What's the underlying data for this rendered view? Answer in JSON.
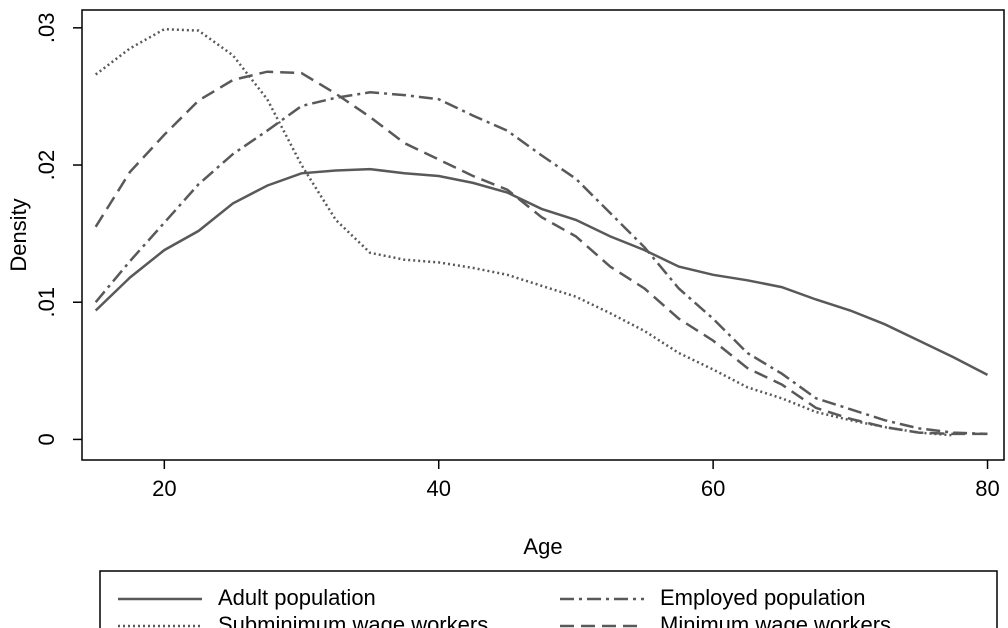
{
  "chart_data": {
    "type": "line",
    "x_label": "Age",
    "y_label": "Density",
    "x": [
      15,
      17.5,
      20,
      22.5,
      25,
      27.5,
      30,
      32.5,
      35,
      37.5,
      40,
      42.5,
      45,
      47.5,
      50,
      52.5,
      55,
      57.5,
      60,
      62.5,
      65,
      67.5,
      70,
      72.5,
      75,
      77.5,
      80
    ],
    "series": [
      {
        "name": "Adult population",
        "color": "#595959",
        "dash": "solid",
        "values": [
          0.0094,
          0.0118,
          0.0138,
          0.0152,
          0.0172,
          0.0185,
          0.0194,
          0.0196,
          0.0197,
          0.0194,
          0.0192,
          0.0187,
          0.018,
          0.0168,
          0.016,
          0.0148,
          0.0138,
          0.0126,
          0.012,
          0.0116,
          0.0111,
          0.0102,
          0.0094,
          0.0084,
          0.0072,
          0.006,
          0.0047
        ]
      },
      {
        "name": "Employed population",
        "color": "#595959",
        "dash": "dashdot",
        "values": [
          0.01,
          0.013,
          0.0158,
          0.0186,
          0.0208,
          0.0225,
          0.0243,
          0.0249,
          0.0253,
          0.0251,
          0.0248,
          0.0236,
          0.0225,
          0.0207,
          0.019,
          0.0165,
          0.014,
          0.011,
          0.0088,
          0.0063,
          0.0048,
          0.003,
          0.0022,
          0.0014,
          0.0008,
          0.0005,
          0.0004
        ]
      },
      {
        "name": "Subminimum wage workers",
        "color": "#595959",
        "dash": "dot",
        "values": [
          0.0266,
          0.0285,
          0.0299,
          0.0298,
          0.028,
          0.0248,
          0.02,
          0.016,
          0.0136,
          0.0131,
          0.0129,
          0.0125,
          0.012,
          0.0112,
          0.0104,
          0.0092,
          0.0079,
          0.0063,
          0.0051,
          0.0038,
          0.003,
          0.002,
          0.0014,
          0.0009,
          0.0005,
          0.0003,
          null
        ]
      },
      {
        "name": "Minimum wage workers",
        "color": "#595959",
        "dash": "dash",
        "values": [
          0.0155,
          0.0195,
          0.0222,
          0.0247,
          0.0262,
          0.0268,
          0.0267,
          0.0252,
          0.0235,
          0.0216,
          0.0204,
          0.0192,
          0.0182,
          0.0162,
          0.0148,
          0.0126,
          0.011,
          0.0088,
          0.0072,
          0.0052,
          0.004,
          0.0023,
          0.0015,
          0.0009,
          0.0005,
          0.0004,
          0.0004
        ]
      }
    ],
    "xlim": [
      14,
      81.2
    ],
    "xticks": [
      20,
      40,
      60,
      80
    ],
    "ylim": [
      -0.0015,
      0.0313
    ],
    "yticks": [
      0,
      {
        "value": 0.01,
        "label": ".01"
      },
      {
        "value": 0.02,
        "label": ".02"
      },
      {
        "value": 0.03,
        "label": ".03"
      }
    ],
    "grid": false,
    "legend": "bottom"
  }
}
